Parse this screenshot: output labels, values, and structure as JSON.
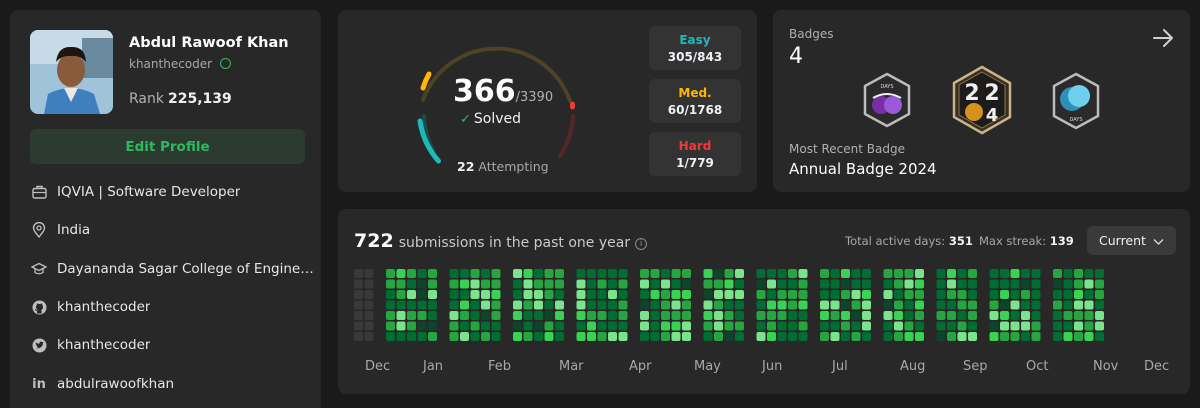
{
  "profile": {
    "name": "Abdul Rawoof Khan",
    "username": "khanthecoder",
    "rank_label": "Rank",
    "rank_value": "225,139",
    "edit_label": "Edit Profile",
    "info": [
      {
        "icon": "briefcase-icon",
        "text": "IQVIA | Software Developer"
      },
      {
        "icon": "location-icon",
        "text": "India"
      },
      {
        "icon": "graduation-cap-icon",
        "text": "Dayananda Sagar College of Engineer..."
      },
      {
        "icon": "github-icon",
        "text": "khanthecoder"
      },
      {
        "icon": "twitter-icon",
        "text": "khanthecoder"
      },
      {
        "icon": "linkedin-icon",
        "text": "abdulrawoofkhan"
      }
    ]
  },
  "solved": {
    "count": "366",
    "total": "/3390",
    "solved_label": "Solved",
    "attempting_count": "22",
    "attempting_label": "Attempting",
    "difficulties": [
      {
        "label": "Easy",
        "value": "305/843",
        "color": "#1cbaba"
      },
      {
        "label": "Med.",
        "value": "60/1768",
        "color": "#ffb700"
      },
      {
        "label": "Hard",
        "value": "1/779",
        "color": "#f63737"
      }
    ]
  },
  "badges": {
    "label": "Badges",
    "count": "4",
    "recent_label": "Most Recent Badge",
    "recent_name": "Annual Badge 2024",
    "items": [
      "100-days-badge",
      "annual-2024-badge",
      "50-days-badge"
    ]
  },
  "submissions": {
    "count": "722",
    "label": "submissions in the past one year",
    "active_days_label": "Total active days:",
    "active_days": "351",
    "max_streak_label": "Max streak:",
    "max_streak": "139",
    "period": "Current",
    "months": [
      "Dec",
      "Jan",
      "Feb",
      "Mar",
      "Apr",
      "May",
      "Jun",
      "Jul",
      "Aug",
      "Sep",
      "Oct",
      "Nov",
      "Dec"
    ]
  },
  "colors": {
    "accent_green": "#2cbb5d",
    "easy": "#1cbaba",
    "medium": "#ffb700",
    "hard": "#f63737",
    "heat_levels": [
      "#393939",
      "#0e4429",
      "#006d32",
      "#26a641",
      "#39d353",
      "#7be38b"
    ]
  }
}
